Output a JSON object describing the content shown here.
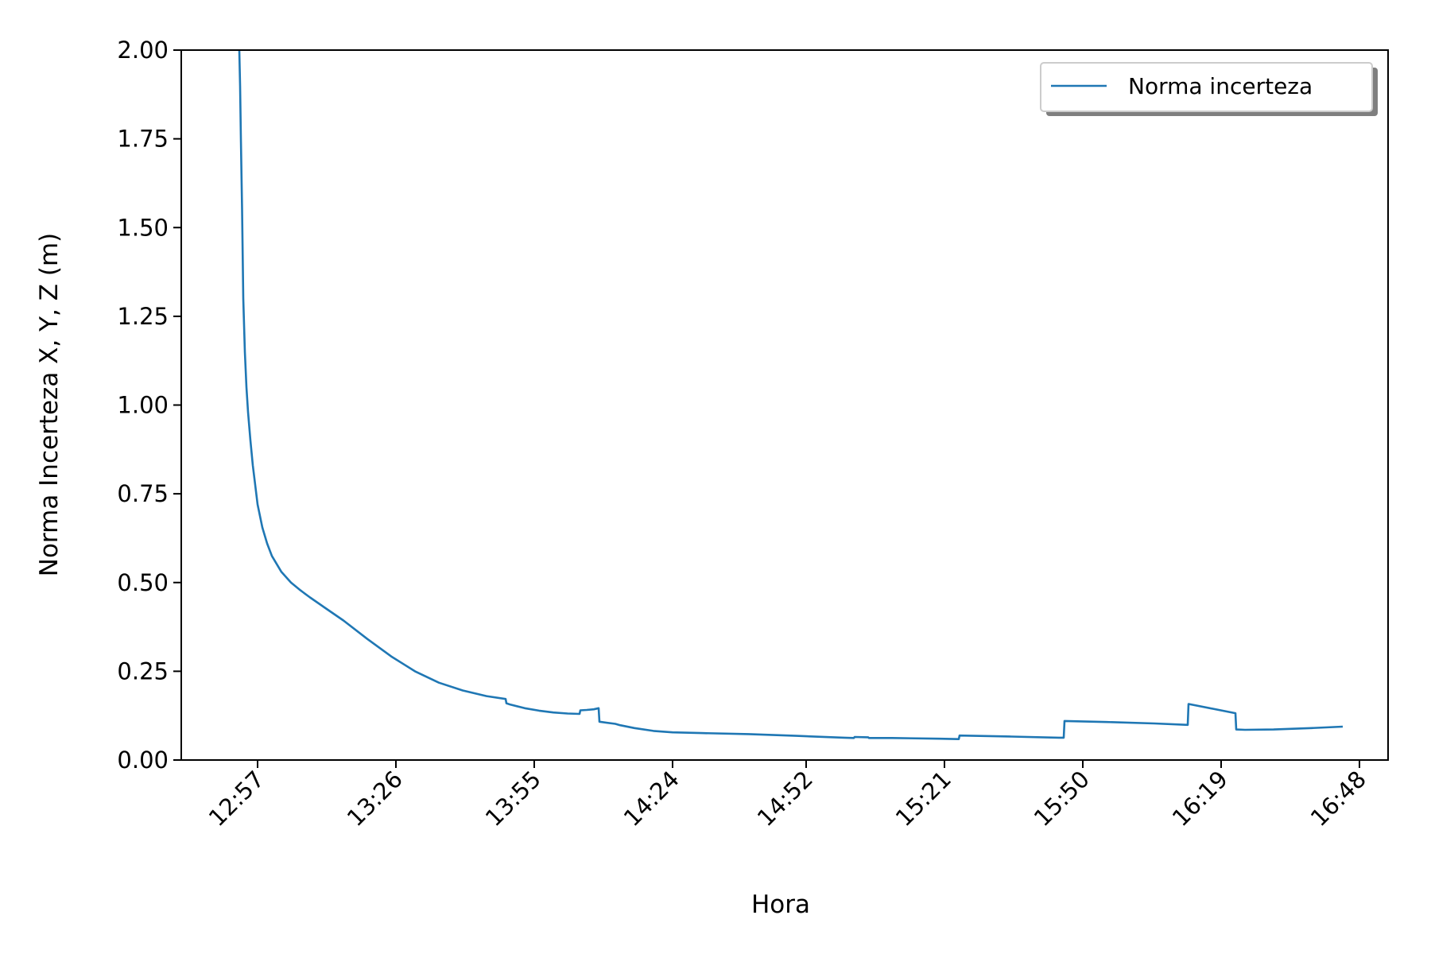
{
  "chart_data": {
    "type": "line",
    "title": "",
    "xlabel": "Hora",
    "ylabel": "Norma Incerteza X, Y, Z (m)",
    "xlim": [
      "12:41",
      "16:54"
    ],
    "ylim": [
      0,
      2.0
    ],
    "x_ticks": [
      "12:57",
      "13:26",
      "13:55",
      "14:24",
      "14:52",
      "15:21",
      "15:50",
      "16:19",
      "16:48"
    ],
    "y_ticks": [
      "0.00",
      "0.25",
      "0.50",
      "0.75",
      "1.00",
      "1.25",
      "1.50",
      "1.75",
      "2.00"
    ],
    "y_tick_values": [
      0,
      0.25,
      0.5,
      0.75,
      1.0,
      1.25,
      1.5,
      1.75,
      2.0
    ],
    "grid": false,
    "legend": {
      "position": "upper right"
    },
    "colors": {
      "series": "#1f77b4",
      "axes": "#000000"
    },
    "series": [
      {
        "name": "Norma incerteza",
        "x": [
          "12:53:10",
          "12:53:20",
          "12:53:30",
          "12:53:45",
          "12:54:00",
          "12:54:20",
          "12:54:40",
          "12:55:00",
          "12:55:30",
          "12:56:00",
          "12:57:00",
          "12:58:00",
          "12:59:00",
          "13:00:00",
          "13:02:00",
          "13:04:00",
          "13:06:00",
          "13:08:00",
          "13:11:00",
          "13:15:00",
          "13:20:00",
          "13:25:00",
          "13:30:00",
          "13:35:00",
          "13:40:00",
          "13:45:00",
          "13:49:00",
          "13:49:10",
          "13:50:00",
          "13:53:00",
          "13:56:00",
          "13:59:00",
          "14:02:00",
          "14:04:30",
          "14:04:40",
          "14:06:00",
          "14:07:30",
          "14:08:30",
          "14:08:40",
          "14:12:00",
          "14:13:00",
          "14:16:00",
          "14:20:00",
          "14:24:00",
          "14:30:00",
          "14:40:00",
          "14:50:00",
          "15:00:00",
          "15:02:00",
          "15:02:10",
          "15:05:00",
          "15:05:10",
          "15:10:00",
          "15:20:00",
          "15:24:00",
          "15:24:10",
          "15:35:00",
          "15:45:00",
          "15:46:00",
          "15:46:10",
          "15:55:00",
          "16:05:00",
          "16:12:00",
          "16:12:10",
          "16:22:00",
          "16:22:10",
          "16:24:00",
          "16:30:00",
          "16:38:00",
          "16:44:30"
        ],
        "y": [
          2.0,
          1.9,
          1.75,
          1.55,
          1.3,
          1.15,
          1.05,
          0.98,
          0.9,
          0.83,
          0.72,
          0.655,
          0.61,
          0.575,
          0.53,
          0.5,
          0.478,
          0.458,
          0.43,
          0.393,
          0.341,
          0.292,
          0.25,
          0.218,
          0.196,
          0.18,
          0.172,
          0.16,
          0.156,
          0.146,
          0.139,
          0.134,
          0.131,
          0.13,
          0.14,
          0.141,
          0.143,
          0.146,
          0.108,
          0.102,
          0.098,
          0.09,
          0.082,
          0.078,
          0.076,
          0.073,
          0.068,
          0.063,
          0.062,
          0.065,
          0.064,
          0.062,
          0.062,
          0.06,
          0.059,
          0.069,
          0.066,
          0.063,
          0.063,
          0.11,
          0.107,
          0.103,
          0.099,
          0.158,
          0.132,
          0.086,
          0.085,
          0.086,
          0.09,
          0.094
        ]
      }
    ]
  }
}
